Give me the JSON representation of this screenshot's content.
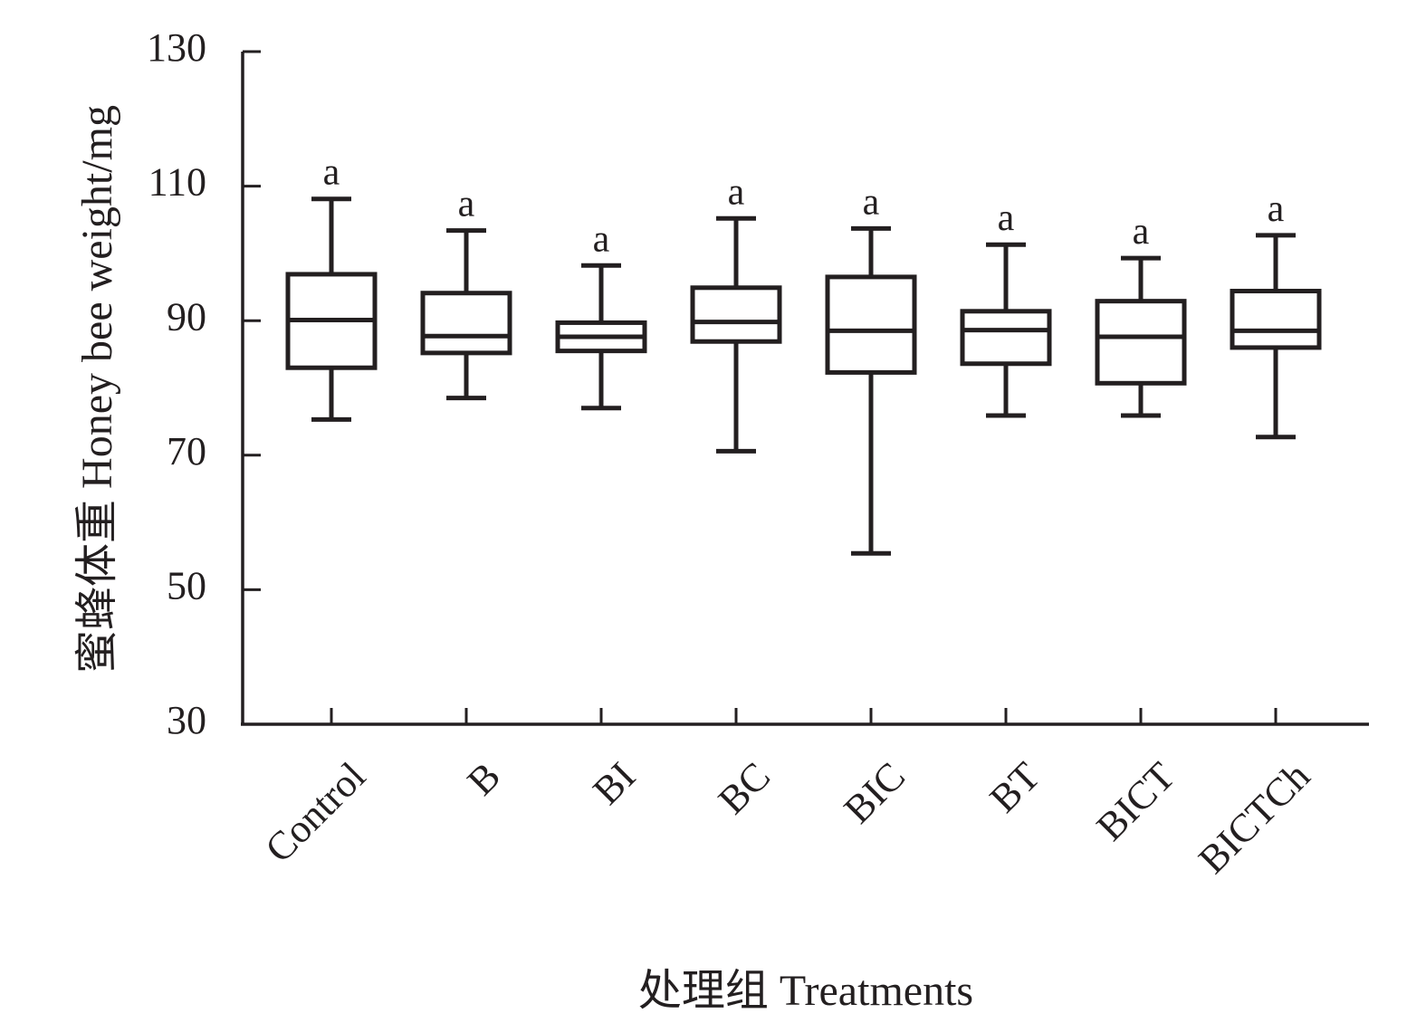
{
  "chart_data": {
    "type": "box",
    "title": "",
    "xlabel": "处理组 Treatments",
    "ylabel": "蜜蜂体重 Honey bee weight/mg",
    "ylim": [
      30,
      130
    ],
    "yticks": [
      "30",
      "50",
      "70",
      "90",
      "110",
      "130"
    ],
    "grid": false,
    "legend": "none",
    "colors": {
      "stroke": "#231f20",
      "background": "#ffffff"
    },
    "categories": [
      "Control",
      "B",
      "BI",
      "BC",
      "BIC",
      "BT",
      "BICT",
      "BICTCh"
    ],
    "boxes": [
      {
        "category": "Control",
        "min": 75.3,
        "q1": 83.0,
        "median": 90.1,
        "q3": 96.9,
        "max": 108.1,
        "label": "a"
      },
      {
        "category": "B",
        "min": 78.5,
        "q1": 85.2,
        "median": 87.7,
        "q3": 94.1,
        "max": 103.4,
        "label": "a"
      },
      {
        "category": "BI",
        "min": 77.0,
        "q1": 85.5,
        "median": 87.6,
        "q3": 89.7,
        "max": 98.2,
        "label": "a"
      },
      {
        "category": "BC",
        "min": 70.6,
        "q1": 86.9,
        "median": 89.8,
        "q3": 94.9,
        "max": 105.2,
        "label": "a"
      },
      {
        "category": "BIC",
        "min": 55.4,
        "q1": 82.3,
        "median": 88.5,
        "q3": 96.5,
        "max": 103.7,
        "label": "a"
      },
      {
        "category": "BT",
        "min": 75.9,
        "q1": 83.6,
        "median": 88.6,
        "q3": 91.4,
        "max": 101.3,
        "label": "a"
      },
      {
        "category": "BICT",
        "min": 75.9,
        "q1": 80.7,
        "median": 87.6,
        "q3": 92.9,
        "max": 99.3,
        "label": "a"
      },
      {
        "category": "BICTCh",
        "min": 72.7,
        "q1": 86.0,
        "median": 88.5,
        "q3": 94.4,
        "max": 102.7,
        "label": "a"
      }
    ]
  }
}
